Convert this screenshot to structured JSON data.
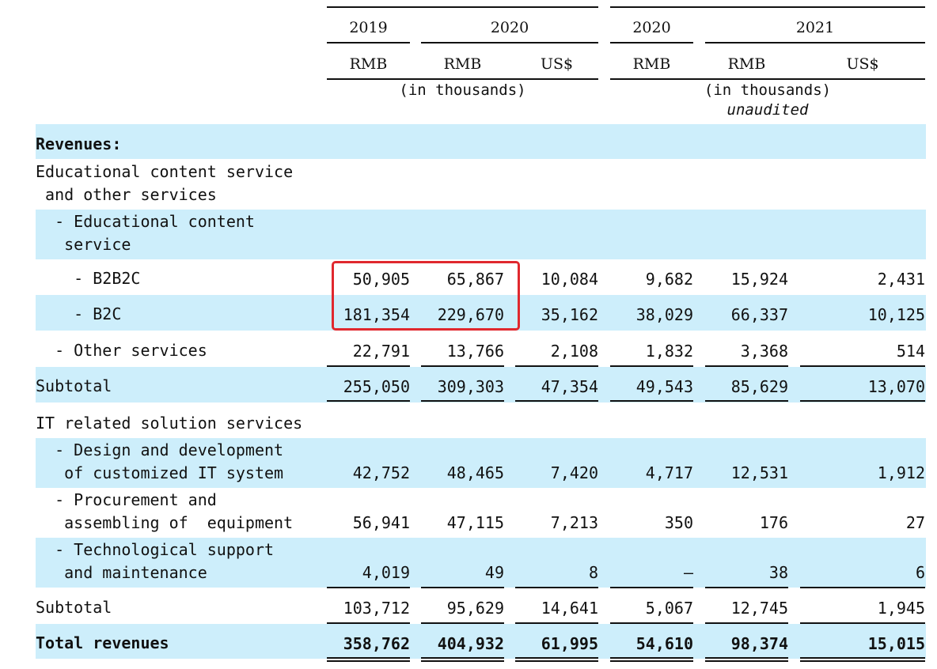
{
  "header": {
    "years": [
      "2019",
      "2020",
      "2020",
      "2021"
    ],
    "currencies": [
      "RMB",
      "RMB",
      "US$",
      "RMB",
      "RMB",
      "US$"
    ],
    "note_left": "(in thousands)",
    "note_right": "(in thousands)",
    "note_right_sub": "unaudited"
  },
  "rows": [
    {
      "label": "Revenues:",
      "values": []
    },
    {
      "label": "Educational content service\n and other services",
      "values": []
    },
    {
      "label": "  - Educational content\n   service",
      "values": []
    },
    {
      "label": "    - B2B2C",
      "values": [
        "50,905",
        "65,867",
        "10,084",
        "9,682",
        "15,924",
        "2,431"
      ]
    },
    {
      "label": "    - B2C",
      "values": [
        "181,354",
        "229,670",
        "35,162",
        "38,029",
        "66,337",
        "10,125"
      ]
    },
    {
      "label": "  - Other services",
      "values": [
        "22,791",
        "13,766",
        "2,108",
        "1,832",
        "3,368",
        "514"
      ]
    },
    {
      "label": "Subtotal",
      "values": [
        "255,050",
        "309,303",
        "47,354",
        "49,543",
        "85,629",
        "13,070"
      ]
    },
    {
      "label": "IT related solution services",
      "values": []
    },
    {
      "label": "  - Design and development\n   of customized IT system",
      "values": [
        "42,752",
        "48,465",
        "7,420",
        "4,717",
        "12,531",
        "1,912"
      ]
    },
    {
      "label": "  - Procurement and\n   assembling of  equipment",
      "values": [
        "56,941",
        "47,115",
        "7,213",
        "350",
        "176",
        "27"
      ]
    },
    {
      "label": "  - Technological support\n   and maintenance",
      "values": [
        "4,019",
        "49",
        "8",
        "—",
        "38",
        "6"
      ]
    },
    {
      "label": "Subtotal",
      "values": [
        "103,712",
        "95,629",
        "14,641",
        "5,067",
        "12,745",
        "1,945"
      ]
    },
    {
      "label": "Total revenues",
      "values": [
        "358,762",
        "404,932",
        "61,995",
        "54,610",
        "98,374",
        "15,015"
      ]
    }
  ]
}
